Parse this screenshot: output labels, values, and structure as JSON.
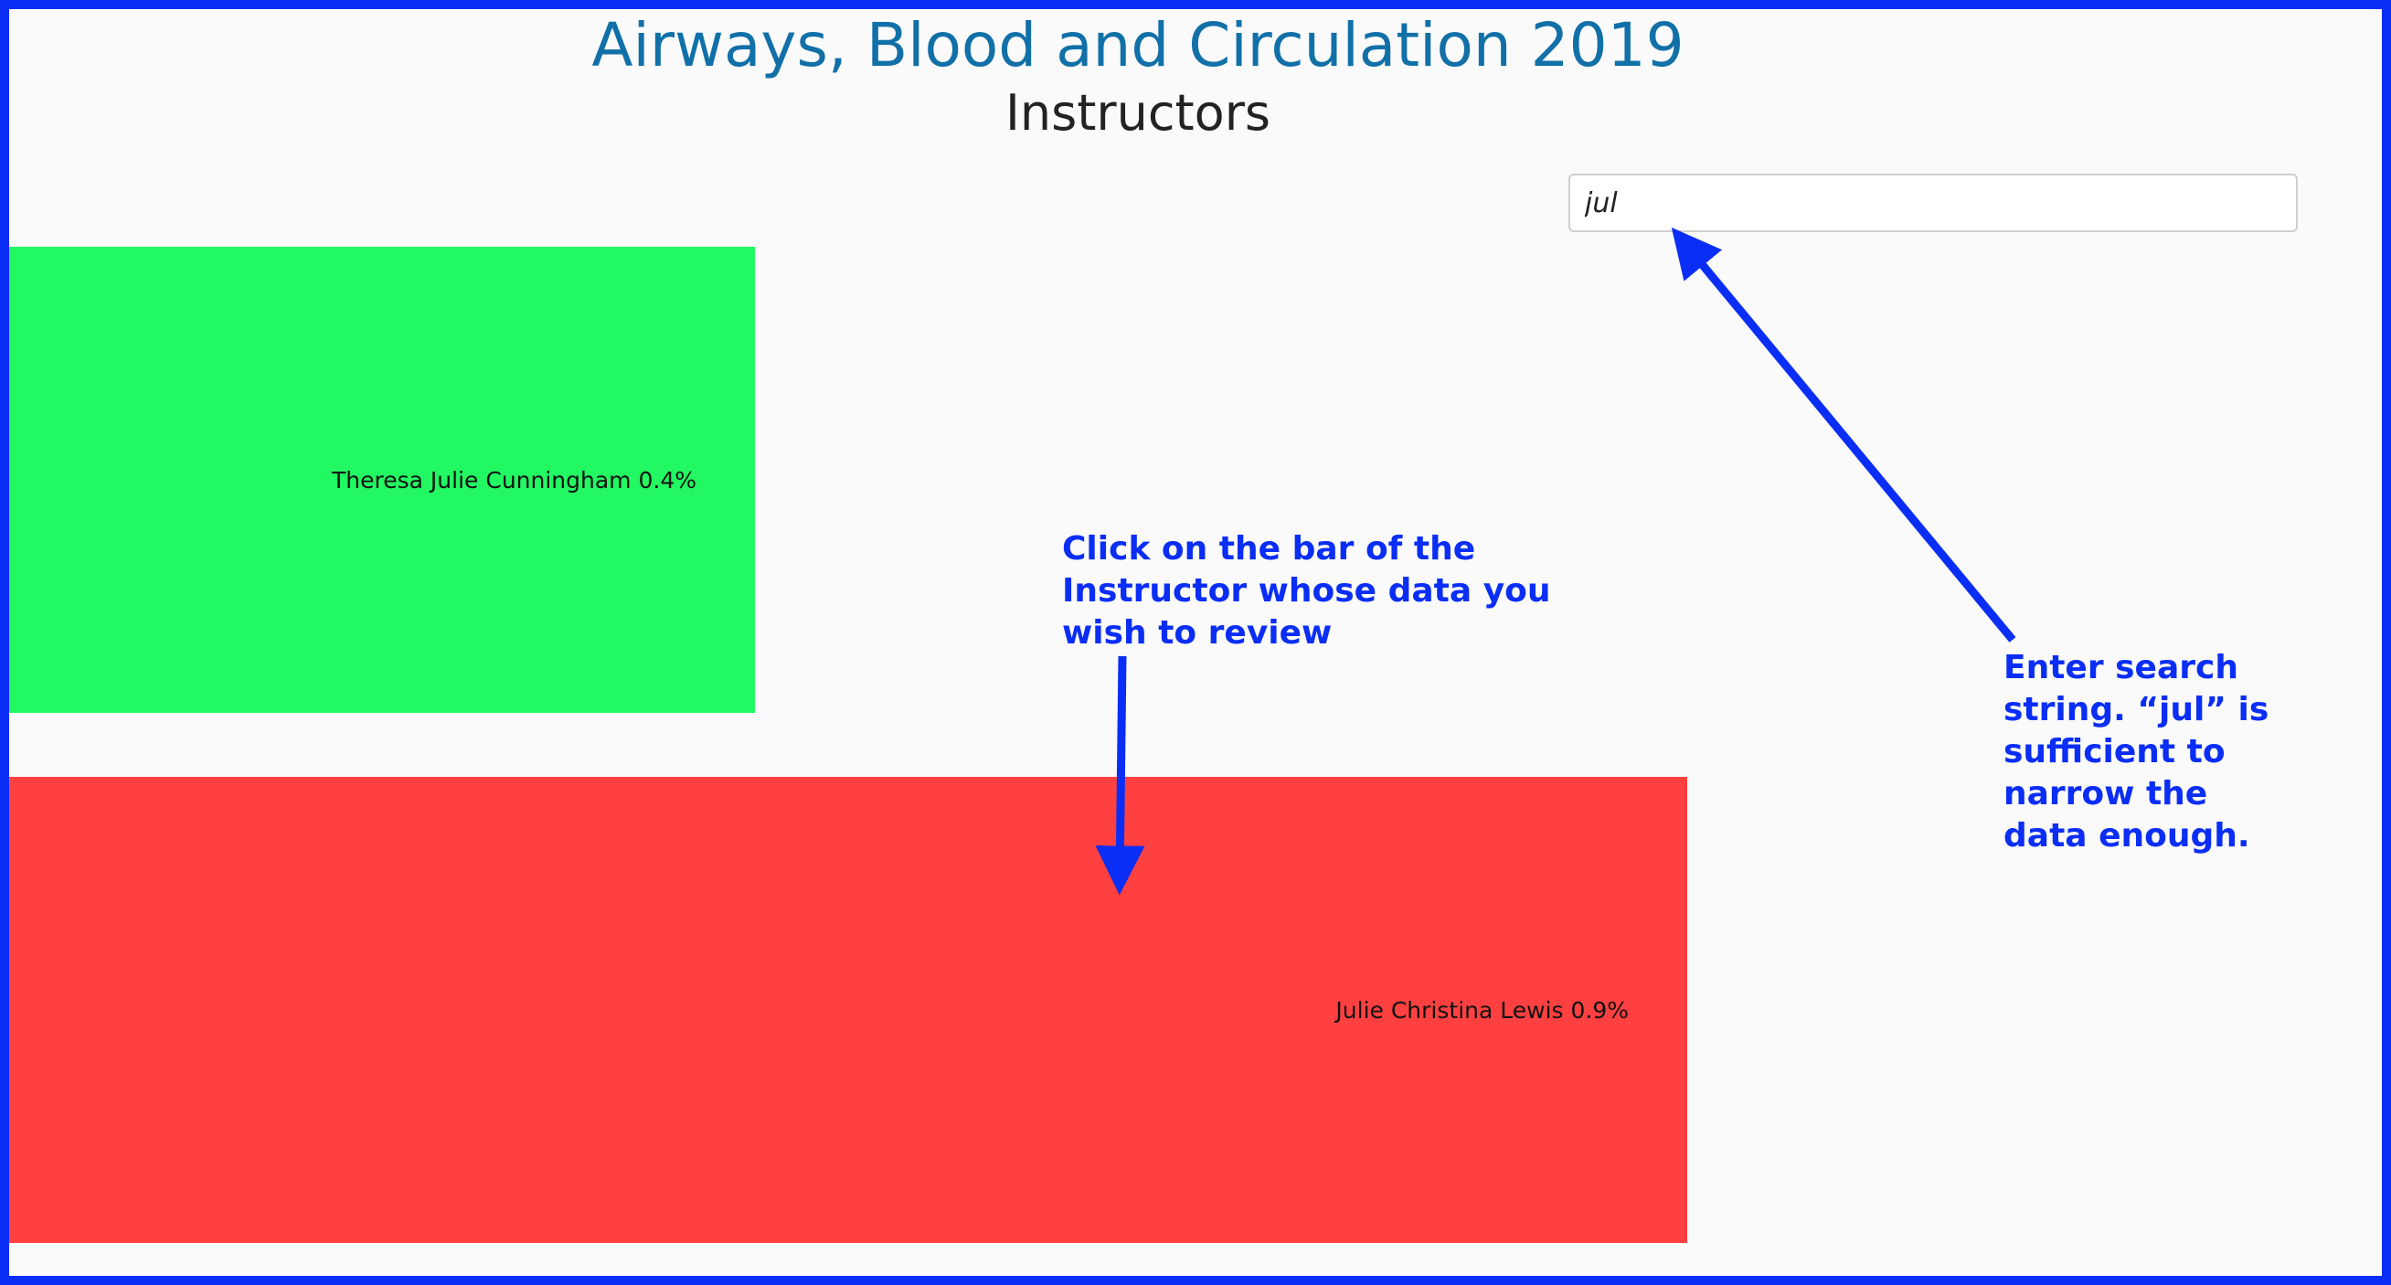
{
  "page": {
    "title": "Airways, Blood and Circulation 2019",
    "subtitle": "Instructors"
  },
  "search": {
    "value": "jul",
    "placeholder": ""
  },
  "chart_data": {
    "type": "bar",
    "orientation": "horizontal",
    "categories": [
      "Theresa Julie Cunningham",
      "Julie Christina Lewis"
    ],
    "values": [
      0.4,
      0.9
    ],
    "labels": [
      "Theresa Julie Cunningham 0.4%",
      "Julie Christina Lewis 0.9%"
    ],
    "colors": [
      "#22f862",
      "#ff4040"
    ],
    "unit": "%"
  },
  "annotations": {
    "click_bar": [
      "Click on the bar of the",
      "Instructor whose data you",
      "wish to review"
    ],
    "search_hint": [
      "Enter search",
      "string. “jul” is",
      "sufficient to",
      "narrow the",
      "data enough."
    ]
  },
  "colors": {
    "frame": "#0a2ef5",
    "title": "#1170a8",
    "annotation": "#0a2ef5"
  }
}
